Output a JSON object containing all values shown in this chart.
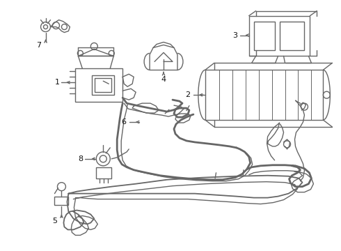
{
  "bg_color": "#ffffff",
  "line_color": "#666666",
  "label_color": "#111111",
  "lw": 1.0,
  "fig_w": 4.9,
  "fig_h": 3.6,
  "dpi": 100
}
